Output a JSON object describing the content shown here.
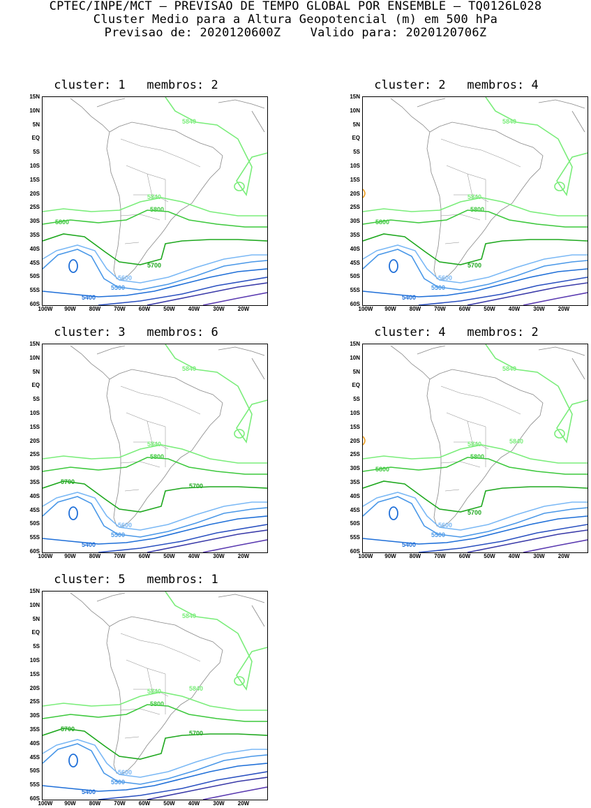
{
  "header": {
    "line1": "CPTEC/INPE/MCT – PREVISAO DE TEMPO GLOBAL POR ENSEMBLE – TQ0126L028",
    "line2": "Cluster Medio para a Altura Geopotencial (m) em 500 hPa",
    "line3": "Previsao de: 2020120600Z    Valido para: 2020120706Z"
  },
  "axis": {
    "lat_labels": [
      "15N",
      "10N",
      "5N",
      "EQ",
      "5S",
      "10S",
      "15S",
      "20S",
      "25S",
      "30S",
      "35S",
      "40S",
      "45S",
      "50S",
      "55S",
      "60S"
    ],
    "lon_labels": [
      "100W",
      "90W",
      "80W",
      "70W",
      "60W",
      "50W",
      "40W",
      "30W",
      "20W"
    ]
  },
  "colors": {
    "c5840": "#7aed7a",
    "c5800": "#3cc83c",
    "c5700": "#1fa81f",
    "c5600": "#7ab8f5",
    "c5500": "#4a98e8",
    "c5400": "#1f6fd8",
    "c_low1": "#2a50c0",
    "c_low2": "#3a3aa8",
    "c_low3": "#5a3ab0",
    "coast": "#888888",
    "orange": "#f0a020"
  },
  "panels": [
    {
      "title": "cluster: 1   membros: 2",
      "labels": {
        "l5840a": "5840",
        "l5840b": "5840",
        "l5800a": "5800",
        "l5800b": "5800",
        "l5700": "5700",
        "l5600": "5600",
        "l5500": "5500",
        "l5400": "5400"
      }
    },
    {
      "title": "cluster: 2   membros: 4",
      "labels": {
        "l5840a": "5840",
        "l5840b": "5840",
        "l5800a": "5800",
        "l5800b": "5800",
        "l5700": "5700",
        "l5600": "5600",
        "l5500": "5500",
        "l5400": "5400"
      }
    },
    {
      "title": "cluster: 3   membros: 6",
      "labels": {
        "l5840a": "5840",
        "l5840b": "5840",
        "l5800a": "5800",
        "l5700a": "5700",
        "l5700b": "5700",
        "l5600": "5600",
        "l5500": "5500",
        "l5400": "5400"
      }
    },
    {
      "title": "cluster: 4   membros: 2",
      "labels": {
        "l5840a": "5840",
        "l5840b": "5840",
        "l5840c": "5840",
        "l5800a": "5800",
        "l5800b": "5800",
        "l5700": "5700",
        "l5600": "5600",
        "l5500": "5500",
        "l5400": "5400"
      }
    },
    {
      "title": "cluster: 5   membros: 1",
      "labels": {
        "l5840a": "5840",
        "l5840b": "5840",
        "l5840c": "5840",
        "l5800a": "5800",
        "l5700a": "5700",
        "l5700b": "5700",
        "l5600": "5600",
        "l5500": "5500",
        "l5400": "5400"
      }
    }
  ]
}
